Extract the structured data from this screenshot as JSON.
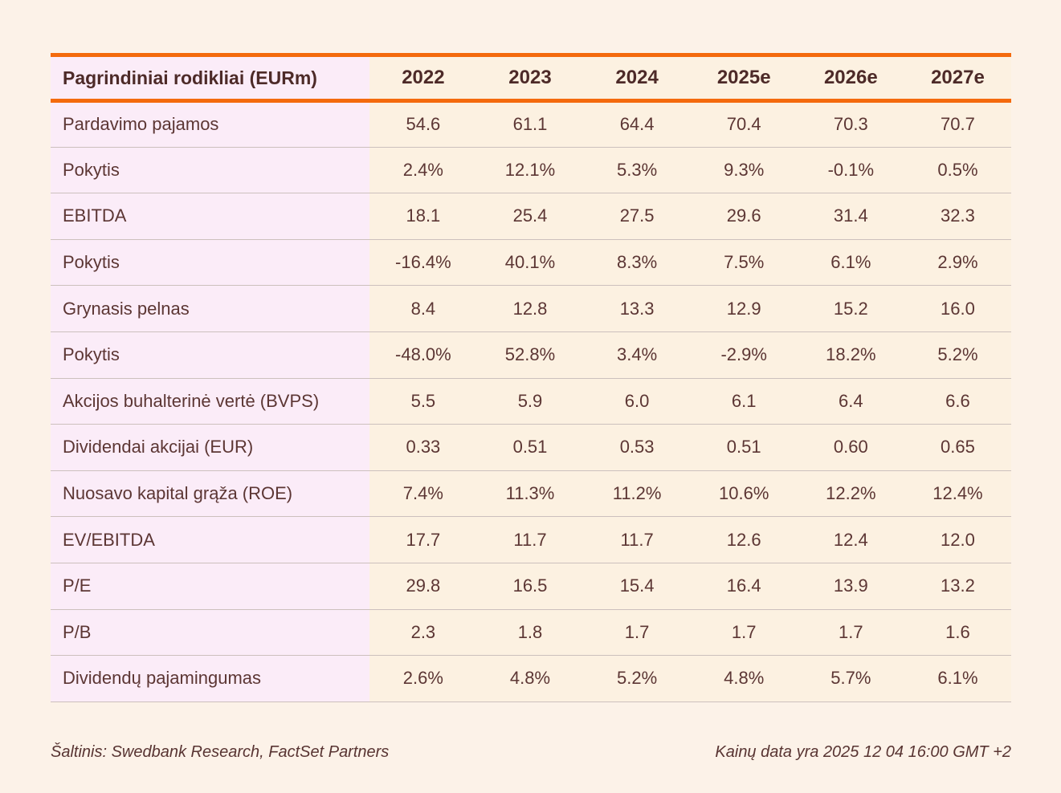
{
  "chart_data": {
    "type": "table",
    "title": "Pagrindiniai rodikliai (EURm)",
    "columns": [
      "2022",
      "2023",
      "2024",
      "2025e",
      "2026e",
      "2027e"
    ],
    "rows": [
      {
        "label": "Pardavimo pajamos",
        "values": [
          "54.6",
          "61.1",
          "64.4",
          "70.4",
          "70.3",
          "70.7"
        ]
      },
      {
        "label": "Pokytis",
        "values": [
          "2.4%",
          "12.1%",
          "5.3%",
          "9.3%",
          "-0.1%",
          "0.5%"
        ]
      },
      {
        "label": "EBITDA",
        "values": [
          "18.1",
          "25.4",
          "27.5",
          "29.6",
          "31.4",
          "32.3"
        ]
      },
      {
        "label": "Pokytis",
        "values": [
          "-16.4%",
          "40.1%",
          "8.3%",
          "7.5%",
          "6.1%",
          "2.9%"
        ]
      },
      {
        "label": "Grynasis pelnas",
        "values": [
          "8.4",
          "12.8",
          "13.3",
          "12.9",
          "15.2",
          "16.0"
        ]
      },
      {
        "label": "Pokytis",
        "values": [
          "-48.0%",
          "52.8%",
          "3.4%",
          "-2.9%",
          "18.2%",
          "5.2%"
        ]
      },
      {
        "label": "Akcijos buhalterinė vertė (BVPS)",
        "values": [
          "5.5",
          "5.9",
          "6.0",
          "6.1",
          "6.4",
          "6.6"
        ]
      },
      {
        "label": "Dividendai akcijai (EUR)",
        "values": [
          "0.33",
          "0.51",
          "0.53",
          "0.51",
          "0.60",
          "0.65"
        ]
      },
      {
        "label": "Nuosavo kapital grąža (ROE)",
        "values": [
          "7.4%",
          "11.3%",
          "11.2%",
          "10.6%",
          "12.2%",
          "12.4%"
        ]
      },
      {
        "label": "EV/EBITDA",
        "values": [
          "17.7",
          "11.7",
          "11.7",
          "12.6",
          "12.4",
          "12.0"
        ]
      },
      {
        "label": "P/E",
        "values": [
          "29.8",
          "16.5",
          "15.4",
          "16.4",
          "13.9",
          "13.2"
        ]
      },
      {
        "label": "P/B",
        "values": [
          "2.3",
          "1.8",
          "1.7",
          "1.7",
          "1.7",
          "1.6"
        ]
      },
      {
        "label": "Dividendų pajamingumas",
        "values": [
          "2.6%",
          "4.8%",
          "5.2%",
          "4.8%",
          "5.7%",
          "6.1%"
        ]
      }
    ]
  },
  "footer": {
    "source": "Šaltinis: Swedbank Research, FactSet Partners",
    "price_date": "Kainų data yra 2025 12 04 16:00 GMT +2"
  },
  "colors": {
    "page_background": "#fcf2e8",
    "value_cell_background": "#fcf1e1",
    "label_cell_background": "#fbecf8",
    "accent_orange": "#f46a0d",
    "row_divider": "#ccc0bd",
    "text_dark": "#4d2a28",
    "text_body": "#5c3634"
  }
}
